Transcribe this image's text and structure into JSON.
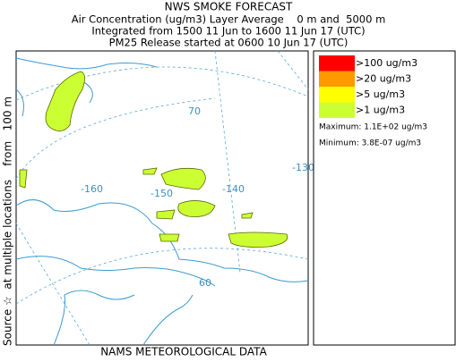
{
  "header": {
    "title": "NWS SMOKE FORECAST",
    "lines": [
      "Air Concentration (ug/m3) Layer Average    0 m and  5000 m",
      "Integrated from 1500 11 Jun to 1600 11 Jun 17 (UTC)",
      "PM25 Release started at 0600 10 Jun 17 (UTC)"
    ]
  },
  "side_label": "Source ☆  at multiple locations    from   100 m",
  "footer": "NAMS METEOROLOGICAL DATA",
  "map": {
    "labels": [
      "70",
      "-160",
      "-150",
      "-140",
      "-130",
      "60"
    ]
  },
  "legend": {
    "items": [
      {
        "label": ">100 ug/m3",
        "color": "#ff0000"
      },
      {
        "label": ">20 ug/m3",
        "color": "#ff9900"
      },
      {
        "label": ">5 ug/m3",
        "color": "#ffff00"
      },
      {
        "label": ">1 ug/m3",
        "color": "#ccff33"
      }
    ],
    "maximum": "Maximum: 1.1E+02 ug/m3",
    "minimum": "Minimum: 3.8E-07 ug/m3"
  }
}
